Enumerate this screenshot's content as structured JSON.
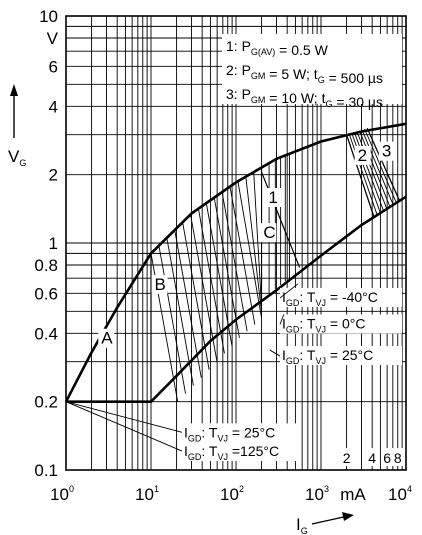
{
  "chart_data": {
    "type": "line",
    "xscale": "log",
    "yscale": "log",
    "xlim": [
      1,
      10000
    ],
    "ylim": [
      0.1,
      10
    ],
    "grid": true,
    "xlabel": "I",
    "xlabel_sub": "G",
    "ylabel": "V",
    "ylabel_sub": "G",
    "x_unit": "mA",
    "y_unit": "V",
    "x_ticks": [
      {
        "base": "10",
        "exp": "0"
      },
      {
        "base": "10",
        "exp": "1"
      },
      {
        "base": "10",
        "exp": "2"
      },
      {
        "base": "10",
        "exp": "3"
      },
      {
        "base": "10",
        "exp": "4"
      }
    ],
    "y_ticks": [
      "0.1",
      "0.2",
      "0.4",
      "0.6",
      "0.8",
      "1",
      "2",
      "4",
      "6",
      "10"
    ],
    "x_minor_labels": [
      "2",
      "4",
      "6",
      "8"
    ],
    "region_labels": [
      "A",
      "B",
      "C",
      "1",
      "2",
      "3"
    ],
    "legend": [
      {
        "num": "1",
        "parts": [
          [
            "P",
            "G(AV)"
          ],
          [
            " = 0.5 W",
            ""
          ]
        ]
      },
      {
        "num": "2",
        "parts": [
          [
            "P",
            "GM"
          ],
          [
            " = 5 W; t",
            "G"
          ],
          [
            " = 500 µs",
            ""
          ]
        ]
      },
      {
        "num": "3",
        "parts": [
          [
            "P",
            "GM"
          ],
          [
            " = 10 W; t",
            "G"
          ],
          [
            " = 30 µs",
            ""
          ]
        ]
      }
    ],
    "igd_labels": [
      {
        "sub1": "GD",
        "mid": ": T",
        "sub2": "VJ",
        "value": " = -40°C"
      },
      {
        "sub1": "GD",
        "mid": ": T",
        "sub2": "VJ",
        "value": " = 0°C"
      },
      {
        "sub1": "GD",
        "mid": ": T",
        "sub2": "VJ",
        "value": " = 25°C"
      }
    ],
    "vgd_labels": [
      {
        "sub1": "GD",
        "mid": ": T",
        "sub2": "VJ",
        "value": " =  25°C"
      },
      {
        "sub1": "GD",
        "mid": ": T",
        "sub2": "VJ",
        "value": " =125°C"
      }
    ],
    "series": [
      {
        "name": "upper",
        "x": [
          1,
          2,
          4,
          10,
          30,
          100,
          300,
          1000,
          3000,
          10000
        ],
        "y": [
          0.2,
          0.33,
          0.52,
          0.9,
          1.35,
          1.85,
          2.35,
          2.8,
          3.1,
          3.35
        ]
      },
      {
        "name": "lower",
        "x": [
          1,
          10,
          20,
          50,
          100,
          300,
          1000,
          3000,
          10000
        ],
        "y": [
          0.2,
          0.2,
          0.26,
          0.37,
          0.46,
          0.62,
          0.88,
          1.2,
          1.6
        ]
      },
      {
        "name": "1",
        "x": [
          200,
          560
        ],
        "y": [
          2.05,
          0.78
        ]
      },
      {
        "name": "2",
        "x": [
          2000,
          4200
        ],
        "y": [
          3.0,
          1.3
        ]
      },
      {
        "name": "3",
        "x": [
          3500,
          8500
        ],
        "y": [
          3.2,
          1.52
        ]
      }
    ]
  }
}
